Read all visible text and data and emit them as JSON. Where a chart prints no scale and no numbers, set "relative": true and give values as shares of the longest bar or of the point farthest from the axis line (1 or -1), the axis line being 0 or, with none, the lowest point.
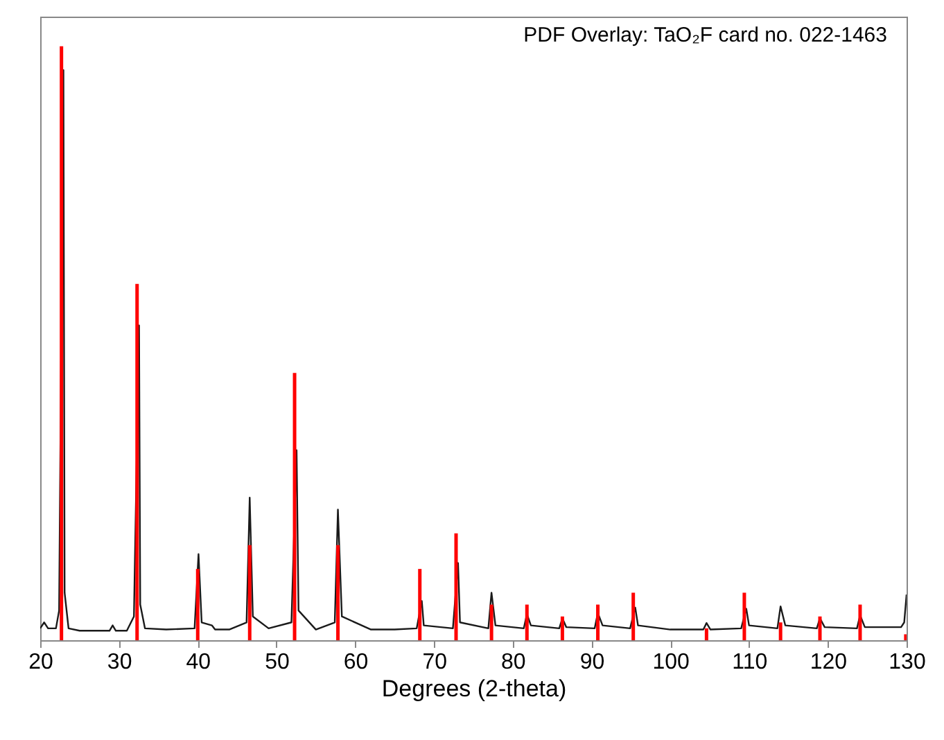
{
  "chart_data": {
    "type": "line",
    "relative": true,
    "xlabel": "Degrees (2-theta)",
    "xlim": [
      20,
      130
    ],
    "xticks": [
      20,
      30,
      40,
      50,
      60,
      70,
      80,
      90,
      100,
      110,
      120,
      130
    ],
    "tick_labels": "x",
    "grid": false,
    "annotations": [
      "PDF Overlay:  TaO₂F card no. 022-1463"
    ],
    "series": [
      {
        "color": "#1a1a1a",
        "x": [
          20,
          20.5,
          21,
          22,
          22.4,
          22.95,
          23.1,
          23.6,
          25,
          27,
          28.8,
          29.2,
          29.6,
          31,
          31.9,
          32.55,
          32.7,
          33.3,
          36,
          39.6,
          40.1,
          40.5,
          41.8,
          42.2,
          44,
          46.2,
          46.6,
          47.0,
          49,
          51.9,
          52.55,
          52.8,
          55,
          57.4,
          57.8,
          58.3,
          62,
          65,
          67.8,
          68.45,
          68.7,
          72.4,
          73.05,
          73.3,
          76.9,
          77.3,
          77.8,
          81.4,
          81.8,
          82.3,
          85.9,
          86.3,
          86.8,
          90.4,
          90.8,
          91.4,
          94.9,
          95.55,
          95.9,
          100,
          104.2,
          104.6,
          105.1,
          109.0,
          109.65,
          110.0,
          113.6,
          114.0,
          114.6,
          118.6,
          119.0,
          119.6,
          123.7,
          124.1,
          124.7,
          129.3,
          129.7,
          130
        ],
        "values": [
          0.02,
          0.03,
          0.02,
          0.02,
          0.05,
          0.96,
          0.08,
          0.02,
          0.016,
          0.016,
          0.016,
          0.025,
          0.016,
          0.016,
          0.04,
          0.53,
          0.06,
          0.02,
          0.018,
          0.02,
          0.145,
          0.03,
          0.025,
          0.018,
          0.018,
          0.03,
          0.24,
          0.04,
          0.02,
          0.03,
          0.32,
          0.05,
          0.018,
          0.03,
          0.22,
          0.04,
          0.018,
          0.018,
          0.02,
          0.066,
          0.025,
          0.02,
          0.13,
          0.03,
          0.02,
          0.08,
          0.025,
          0.02,
          0.044,
          0.025,
          0.02,
          0.037,
          0.022,
          0.02,
          0.046,
          0.025,
          0.02,
          0.055,
          0.025,
          0.018,
          0.018,
          0.029,
          0.018,
          0.02,
          0.053,
          0.025,
          0.02,
          0.057,
          0.025,
          0.02,
          0.037,
          0.022,
          0.02,
          0.042,
          0.022,
          0.022,
          0.03,
          0.077
        ]
      },
      {
        "type": "bar",
        "color": "#ff0000",
        "x": [
          22.7,
          32.3,
          40.0,
          46.6,
          52.3,
          57.8,
          68.2,
          72.8,
          77.3,
          81.8,
          86.3,
          90.8,
          95.3,
          104.6,
          109.4,
          114.0,
          119.0,
          124.1,
          129.9
        ],
        "values": [
          1.0,
          0.6,
          0.12,
          0.16,
          0.45,
          0.16,
          0.12,
          0.18,
          0.06,
          0.06,
          0.04,
          0.06,
          0.08,
          0.02,
          0.08,
          0.03,
          0.04,
          0.06,
          0.01
        ]
      }
    ]
  }
}
